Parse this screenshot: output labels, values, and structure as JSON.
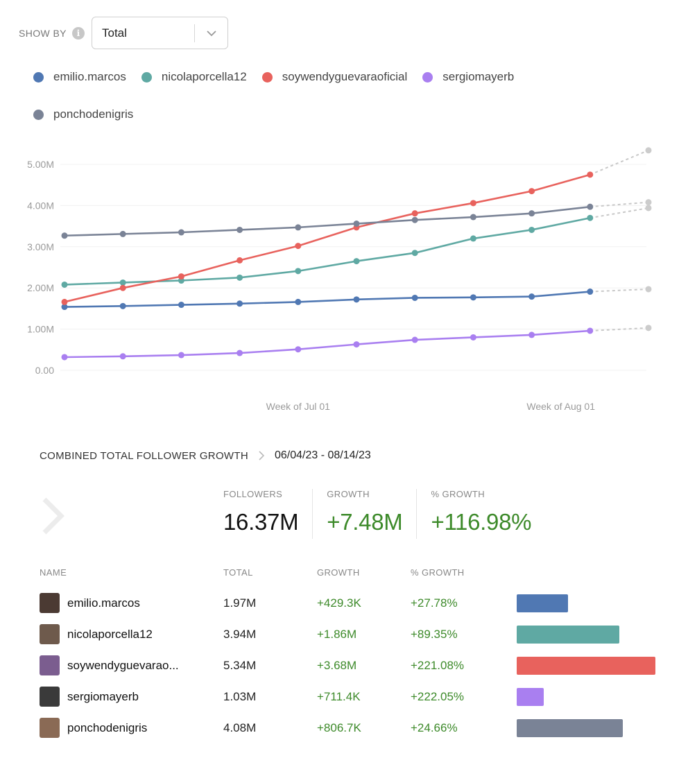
{
  "show_by": {
    "label": "SHOW BY",
    "selected": "Total"
  },
  "legend": [
    {
      "name": "emilio.marcos",
      "color": "#5078b3"
    },
    {
      "name": "nicolaporcella12",
      "color": "#5fa9a3"
    },
    {
      "name": "soywendyguevaraoficial",
      "color": "#e8625d"
    },
    {
      "name": "sergiomayerb",
      "color": "#a97ff0"
    },
    {
      "name": "ponchodenigris",
      "color": "#7a8396"
    }
  ],
  "chart_data": {
    "type": "line",
    "title": "",
    "xlabel": "",
    "ylabel": "",
    "ylim": [
      0,
      5.6
    ],
    "yticks": [
      0,
      1,
      2,
      3,
      4,
      5
    ],
    "ytick_labels": [
      "0.00",
      "1.00M",
      "2.00M",
      "3.00M",
      "4.00M",
      "5.00M"
    ],
    "x_tick_labels": [
      {
        "label": "Week of Jul 01",
        "at": 4
      },
      {
        "label": "Week of Aug 01",
        "at": 8.5
      }
    ],
    "x": [
      0,
      1,
      2,
      3,
      4,
      5,
      6,
      7,
      8,
      9
    ],
    "projection_x": 10,
    "series": [
      {
        "name": "emilio.marcos",
        "color": "#5078b3",
        "values": [
          1.54,
          1.56,
          1.59,
          1.62,
          1.66,
          1.72,
          1.76,
          1.77,
          1.79,
          1.91
        ],
        "projection": 1.97
      },
      {
        "name": "nicolaporcella12",
        "color": "#5fa9a3",
        "values": [
          2.08,
          2.13,
          2.18,
          2.25,
          2.41,
          2.65,
          2.85,
          3.2,
          3.41,
          3.7
        ],
        "projection": 3.94
      },
      {
        "name": "soywendyguevaraoficial",
        "color": "#e8625d",
        "values": [
          1.66,
          2.0,
          2.28,
          2.67,
          3.02,
          3.47,
          3.81,
          4.06,
          4.35,
          4.75
        ],
        "projection": 5.34
      },
      {
        "name": "sergiomayerb",
        "color": "#a97ff0",
        "values": [
          0.32,
          0.34,
          0.37,
          0.42,
          0.51,
          0.63,
          0.74,
          0.8,
          0.86,
          0.96
        ],
        "projection": 1.03
      },
      {
        "name": "ponchodenigris",
        "color": "#7a8396",
        "values": [
          3.27,
          3.31,
          3.35,
          3.41,
          3.47,
          3.56,
          3.65,
          3.72,
          3.81,
          3.97
        ],
        "projection": 4.08
      }
    ]
  },
  "summary": {
    "title": "COMBINED TOTAL FOLLOWER GROWTH",
    "date_range": "06/04/23 - 08/14/23",
    "followers_label": "FOLLOWERS",
    "followers_value": "16.37M",
    "growth_label": "GROWTH",
    "growth_value": "+7.48M",
    "pct_label": "% GROWTH",
    "pct_value": "+116.98%"
  },
  "table": {
    "headers": {
      "name": "NAME",
      "total": "TOTAL",
      "growth": "GROWTH",
      "pct": "% GROWTH"
    },
    "rows": [
      {
        "name": "emilio.marcos",
        "total": "1.97M",
        "growth": "+429.3K",
        "pct": "+27.78%",
        "bar_value": 1.97,
        "color": "#5078b3"
      },
      {
        "name": "nicolaporcella12",
        "total": "3.94M",
        "growth": "+1.86M",
        "pct": "+89.35%",
        "bar_value": 3.94,
        "color": "#5fa9a3"
      },
      {
        "name": "soywendyguevarao...",
        "total": "5.34M",
        "growth": "+3.68M",
        "pct": "+221.08%",
        "bar_value": 5.34,
        "color": "#e8625d"
      },
      {
        "name": "sergiomayerb",
        "total": "1.03M",
        "growth": "+711.4K",
        "pct": "+222.05%",
        "bar_value": 1.03,
        "color": "#a97ff0"
      },
      {
        "name": "ponchodenigris",
        "total": "4.08M",
        "growth": "+806.7K",
        "pct": "+24.66%",
        "bar_value": 4.08,
        "color": "#7a8396"
      }
    ]
  }
}
